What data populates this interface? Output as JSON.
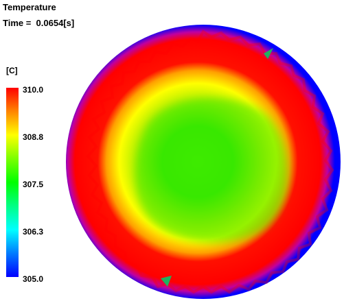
{
  "header": {
    "title": "Temperature",
    "time_label": "Time =  0.0654[s]"
  },
  "legend": {
    "unit": "[C]",
    "ticks": [
      "310.0",
      "308.8",
      "307.5",
      "306.3",
      "305.0"
    ],
    "colors": [
      "#ff0000",
      "#ffff00",
      "#00ff00",
      "#00ffff",
      "#0000ff"
    ]
  },
  "colors": {
    "hot": "#ff0000",
    "warm": "#ffff00",
    "mid": "#00ff00",
    "cool": "#00ffff",
    "cold": "#0000ff"
  }
}
